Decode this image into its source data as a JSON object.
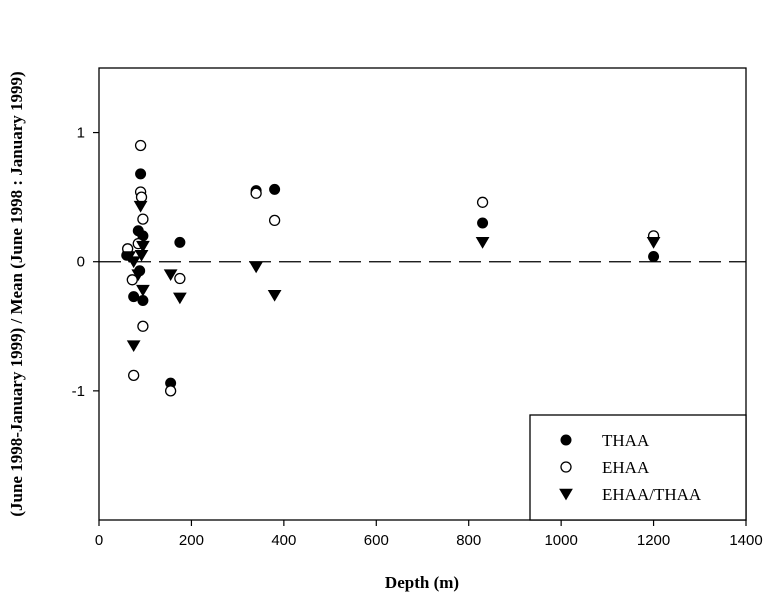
{
  "chart_data": {
    "type": "scatter",
    "title": "",
    "xlabel": "Depth (m)",
    "ylabel": "(June 1998-January 1999) / Mean (June 1998 : January 1999)",
    "xlim": [
      0,
      1400
    ],
    "ylim": [
      -2,
      1.5
    ],
    "x_ticks": [
      0,
      200,
      400,
      600,
      800,
      1000,
      1200,
      1400
    ],
    "y_ticks": [
      -1,
      0,
      1
    ],
    "grid": false,
    "legend_position": "bottom-right",
    "reference_line": {
      "y": 0,
      "style": "dashed"
    },
    "series": [
      {
        "name": "THAA",
        "marker": "filled-circle",
        "points": [
          [
            60,
            0.05
          ],
          [
            75,
            -0.27
          ],
          [
            85,
            0.24
          ],
          [
            88,
            -0.07
          ],
          [
            90,
            0.68
          ],
          [
            95,
            0.2
          ],
          [
            95,
            -0.3
          ],
          [
            155,
            -0.94
          ],
          [
            175,
            0.15
          ],
          [
            340,
            0.55
          ],
          [
            380,
            0.56
          ],
          [
            830,
            0.3
          ],
          [
            1200,
            0.04
          ]
        ]
      },
      {
        "name": "EHAA",
        "marker": "open-circle",
        "points": [
          [
            62,
            0.1
          ],
          [
            72,
            -0.14
          ],
          [
            75,
            -0.88
          ],
          [
            85,
            0.14
          ],
          [
            90,
            0.9
          ],
          [
            90,
            0.54
          ],
          [
            92,
            0.5
          ],
          [
            95,
            0.33
          ],
          [
            95,
            -0.5
          ],
          [
            155,
            -1.0
          ],
          [
            175,
            -0.13
          ],
          [
            340,
            0.53
          ],
          [
            380,
            0.32
          ],
          [
            830,
            0.46
          ],
          [
            1200,
            0.2
          ]
        ]
      },
      {
        "name": "EHAA/THAA",
        "marker": "filled-triangle-down",
        "points": [
          [
            65,
            0.04
          ],
          [
            75,
            -0.65
          ],
          [
            75,
            0.0
          ],
          [
            85,
            -0.1
          ],
          [
            90,
            0.43
          ],
          [
            92,
            0.05
          ],
          [
            95,
            -0.22
          ],
          [
            95,
            0.12
          ],
          [
            155,
            -0.1
          ],
          [
            175,
            -0.28
          ],
          [
            340,
            -0.04
          ],
          [
            380,
            -0.26
          ],
          [
            830,
            0.15
          ],
          [
            1200,
            0.15
          ]
        ]
      }
    ]
  }
}
